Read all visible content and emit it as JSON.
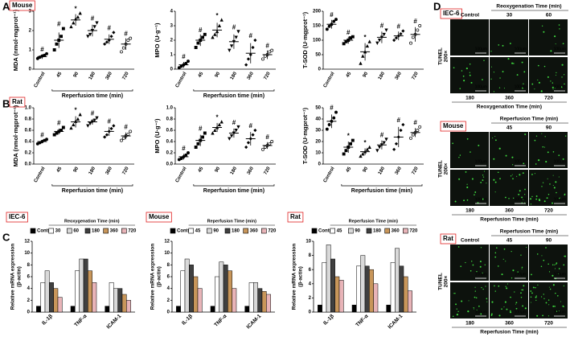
{
  "panel_labels": [
    "A",
    "B",
    "C",
    "D"
  ],
  "chart_data": [
    {
      "type": "dotplot",
      "tag": "Mouse",
      "ylabel": "MDA (nmol·mgprot⁻¹)",
      "xlabel": "Reperfusion time (min)",
      "categories": [
        "Control",
        "45",
        "90",
        "180",
        "360",
        "720"
      ],
      "values": [
        0.65,
        1.5,
        2.55,
        2.0,
        1.55,
        1.3
      ],
      "errors": [
        0.12,
        0.4,
        0.3,
        0.3,
        0.25,
        0.3
      ],
      "points": [
        [
          0.55,
          0.62,
          0.68,
          0.72,
          0.8
        ],
        [
          1.0,
          1.3,
          1.5,
          1.7,
          2.1
        ],
        [
          2.2,
          2.4,
          2.6,
          2.7,
          2.9
        ],
        [
          1.7,
          1.8,
          2.0,
          2.2,
          2.4
        ],
        [
          1.3,
          1.4,
          1.5,
          1.7,
          1.9
        ],
        [
          0.9,
          1.1,
          1.3,
          1.5,
          1.6
        ]
      ],
      "sig_labels": [
        "#",
        "#",
        "*",
        "#",
        "#",
        "#"
      ],
      "sig_color": "#e02020",
      "ylim": [
        0,
        3
      ],
      "yticks": [
        0,
        1,
        2,
        3
      ]
    },
    {
      "type": "dotplot",
      "ylabel": "MPO (U·g⁻¹)",
      "xlabel": "Reperfusion time (min)",
      "categories": [
        "Control",
        "45",
        "90",
        "180",
        "360",
        "720"
      ],
      "values": [
        0.3,
        2.0,
        2.7,
        1.9,
        1.1,
        1.0
      ],
      "errors": [
        0.2,
        0.4,
        0.5,
        0.5,
        0.7,
        0.3
      ],
      "points": [
        [
          0.1,
          0.2,
          0.3,
          0.4,
          0.55
        ],
        [
          1.5,
          1.8,
          2.0,
          2.2,
          2.4
        ],
        [
          2.2,
          2.4,
          2.6,
          3.0,
          3.4
        ],
        [
          1.3,
          1.6,
          1.9,
          2.2,
          2.6
        ],
        [
          0.3,
          0.7,
          1.0,
          1.5,
          2.0
        ],
        [
          0.7,
          0.9,
          1.0,
          1.2,
          1.3
        ]
      ],
      "sig_labels": [
        "#",
        "#",
        "*",
        "#",
        "#",
        "#"
      ],
      "sig_color": "#e02020",
      "ylim": [
        0,
        4
      ],
      "yticks": [
        0,
        1,
        2,
        3,
        4
      ]
    },
    {
      "type": "dotplot",
      "ylabel": "T-SOD (U·mgprot⁻¹)",
      "categories": [
        "Control",
        "45",
        "90",
        "180",
        "360",
        "720"
      ],
      "values": [
        155,
        100,
        60,
        110,
        115,
        120
      ],
      "errors": [
        15,
        12,
        30,
        20,
        15,
        25
      ],
      "points": [
        [
          138,
          148,
          155,
          165,
          172
        ],
        [
          88,
          95,
          100,
          108,
          112
        ],
        [
          20,
          45,
          60,
          80,
          95
        ],
        [
          90,
          100,
          110,
          120,
          135
        ],
        [
          100,
          108,
          115,
          122,
          132
        ],
        [
          90,
          110,
          120,
          135,
          150
        ]
      ],
      "sig_labels": [
        "#",
        "#",
        "*",
        "#",
        "#",
        "#"
      ],
      "sig_color": "#e02020",
      "ylim": [
        0,
        200
      ],
      "yticks": [
        0,
        50,
        100,
        150,
        200
      ]
    },
    {
      "type": "dotplot",
      "tag": "Rat",
      "ylabel": "MDA (nmol·mgprot⁻¹)",
      "xlabel": "Reperfusion time (min)",
      "categories": [
        "Control",
        "45",
        "90",
        "180",
        "360",
        "720"
      ],
      "values": [
        0.4,
        0.58,
        0.75,
        0.75,
        0.58,
        0.5
      ],
      "errors": [
        0.03,
        0.05,
        0.1,
        0.05,
        0.08,
        0.06
      ],
      "points": [
        [
          0.36,
          0.38,
          0.4,
          0.42,
          0.44
        ],
        [
          0.52,
          0.55,
          0.58,
          0.6,
          0.65
        ],
        [
          0.64,
          0.7,
          0.76,
          0.8,
          0.88
        ],
        [
          0.68,
          0.72,
          0.75,
          0.78,
          0.82
        ],
        [
          0.48,
          0.52,
          0.58,
          0.63,
          0.68
        ],
        [
          0.42,
          0.46,
          0.5,
          0.53,
          0.58
        ]
      ],
      "sig_labels": [
        "#",
        "#",
        "*",
        "#",
        "#",
        "#"
      ],
      "sig_color": "#e02020",
      "ylim": [
        0,
        1
      ],
      "yticks": [
        {
          "value": 0,
          "label": "0.0"
        },
        0.2,
        0.4,
        0.6,
        0.8,
        {
          "value": 1,
          "label": "1.0"
        }
      ]
    },
    {
      "type": "dotplot",
      "ylabel": "MPO (U·g⁻¹)",
      "xlabel": "Reperfusion time (min)",
      "categories": [
        "Control",
        "45",
        "90",
        "180",
        "360",
        "720"
      ],
      "values": [
        0.13,
        0.42,
        0.65,
        0.55,
        0.45,
        0.33
      ],
      "errors": [
        0.05,
        0.1,
        0.08,
        0.08,
        0.12,
        0.06
      ],
      "points": [
        [
          0.08,
          0.1,
          0.13,
          0.16,
          0.2
        ],
        [
          0.3,
          0.36,
          0.42,
          0.48,
          0.55
        ],
        [
          0.55,
          0.6,
          0.65,
          0.7,
          0.75
        ],
        [
          0.45,
          0.5,
          0.55,
          0.6,
          0.66
        ],
        [
          0.3,
          0.38,
          0.45,
          0.52,
          0.6
        ],
        [
          0.26,
          0.3,
          0.33,
          0.36,
          0.4
        ]
      ],
      "sig_labels": [
        "#",
        "#",
        "*",
        "#",
        "#",
        "#"
      ],
      "sig_color": "#e02020",
      "ylim": [
        0,
        1
      ],
      "yticks": [
        {
          "value": 0,
          "label": "0.0"
        },
        0.2,
        0.4,
        0.6,
        0.8,
        {
          "value": 1,
          "label": "1.0"
        }
      ]
    },
    {
      "type": "dotplot",
      "ylabel": "T-SOD (U·mgprot⁻¹)",
      "xlabel": "Reperfusion time (min)",
      "categories": [
        "Control",
        "45",
        "90",
        "180",
        "360",
        "720"
      ],
      "values": [
        38,
        15,
        11,
        17,
        24,
        28
      ],
      "errors": [
        6,
        5,
        3,
        4,
        9,
        4
      ],
      "points": [
        [
          31,
          35,
          38,
          41,
          46
        ],
        [
          9,
          12,
          15,
          18,
          21
        ],
        [
          7,
          9,
          11,
          13,
          15
        ],
        [
          12,
          15,
          17,
          19,
          22
        ],
        [
          13,
          18,
          24,
          30,
          35
        ],
        [
          23,
          26,
          28,
          30,
          33
        ]
      ],
      "sig_labels": [
        "#",
        "*",
        "*",
        "#",
        "#",
        "#"
      ],
      "sig_color": "#e02020",
      "ylim": [
        0,
        50
      ],
      "yticks": [
        0,
        10,
        20,
        30,
        40,
        50
      ]
    },
    {
      "type": "bar",
      "tag": "IEC-6",
      "legend_title": "Reoxygenation Time (min)",
      "ylabel": [
        "Relative mRNA expression",
        "(β-actin)"
      ],
      "categories": [
        "IL-1β",
        "TNF-α",
        "ICAM-1"
      ],
      "series": [
        {
          "name": "Control",
          "color": "#000000",
          "values": [
            1,
            1,
            1
          ]
        },
        {
          "name": "30",
          "color": "#ffffff",
          "values": [
            5,
            7,
            5
          ]
        },
        {
          "name": "60",
          "color": "#d9d9d9",
          "values": [
            7,
            9,
            4
          ]
        },
        {
          "name": "180",
          "color": "#404040",
          "values": [
            5,
            9,
            4
          ]
        },
        {
          "name": "360",
          "color": "#c8965a",
          "values": [
            4,
            7,
            3
          ]
        },
        {
          "name": "720",
          "color": "#e8b4b8",
          "values": [
            2.5,
            5,
            2
          ]
        }
      ],
      "ylim": [
        0,
        12
      ],
      "yticks": [
        0,
        2,
        4,
        6,
        8,
        10,
        12
      ]
    },
    {
      "type": "bar",
      "tag": "Mouse",
      "legend_title": "Reperfusion Time (min)",
      "ylabel": [
        "Relative mRNA expression",
        "(β-actin)"
      ],
      "categories": [
        "IL-1β",
        "TNF-α",
        "ICAM-1"
      ],
      "series": [
        {
          "name": "Control",
          "color": "#000000",
          "values": [
            1,
            1,
            1
          ]
        },
        {
          "name": "45",
          "color": "#ffffff",
          "values": [
            7,
            6,
            5
          ]
        },
        {
          "name": "90",
          "color": "#d9d9d9",
          "values": [
            9,
            8.5,
            5
          ]
        },
        {
          "name": "180",
          "color": "#404040",
          "values": [
            8,
            8,
            4
          ]
        },
        {
          "name": "360",
          "color": "#c8965a",
          "values": [
            6,
            7,
            3.5
          ]
        },
        {
          "name": "720",
          "color": "#e8b4b8",
          "values": [
            4,
            4,
            3
          ]
        }
      ],
      "ylim": [
        0,
        12
      ],
      "yticks": [
        0,
        2,
        4,
        6,
        8,
        10,
        12
      ]
    },
    {
      "type": "bar",
      "tag": "Rat",
      "legend_title": "Reperfusion Time (min)",
      "ylabel": [
        "Relative mRNA expression",
        "(β-actin)"
      ],
      "categories": [
        "IL-1β",
        "TNF-α",
        "ICAM-1"
      ],
      "series": [
        {
          "name": "Control",
          "color": "#000000",
          "values": [
            1,
            1,
            1
          ]
        },
        {
          "name": "45",
          "color": "#ffffff",
          "values": [
            7,
            6.5,
            7
          ]
        },
        {
          "name": "90",
          "color": "#d9d9d9",
          "values": [
            9.5,
            8,
            9
          ]
        },
        {
          "name": "180",
          "color": "#404040",
          "values": [
            7.5,
            6.5,
            6.5
          ]
        },
        {
          "name": "360",
          "color": "#c8965a",
          "values": [
            5,
            6,
            5
          ]
        },
        {
          "name": "720",
          "color": "#e8b4b8",
          "values": [
            4.5,
            4,
            3
          ]
        }
      ],
      "ylim": [
        0,
        10
      ],
      "yticks": [
        0,
        2,
        4,
        6,
        8,
        10
      ]
    }
  ],
  "panel_d": {
    "side_label": [
      "TUNEL",
      "200×"
    ],
    "scale_bar": "100μm",
    "blocks": [
      {
        "tag": "IEC-6",
        "header": "Reoxygenation Time (min)",
        "top_cols": [
          "Control",
          "30",
          "60"
        ],
        "bottom_cols": [
          "180",
          "360",
          "720"
        ],
        "footer": "Reoxygenation Time (min)"
      },
      {
        "tag": "Mouse",
        "header": "Reperfusion Time (min)",
        "top_cols": [
          null,
          "45",
          "90"
        ],
        "bottom_cols": [
          "180",
          "360",
          "720"
        ],
        "footer": "Reperfusion Time (min)"
      },
      {
        "tag": "Rat",
        "header": "Reperfusion Time (min)",
        "top_cols": [
          "Control",
          "45",
          "90"
        ],
        "bottom_cols": [
          "180",
          "360",
          "720"
        ],
        "footer": "Reperfusion Time (min)"
      }
    ]
  }
}
